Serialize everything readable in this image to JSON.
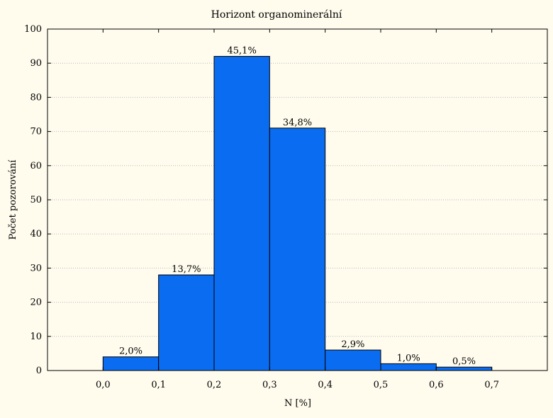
{
  "chart_data": {
    "type": "bar",
    "title": "Horizont organominerální",
    "xlabel": "N [%]",
    "ylabel": "Počet pozorování",
    "bins": [
      {
        "x0": 0.0,
        "x1": 0.1,
        "value": 4,
        "label": "2,0%"
      },
      {
        "x0": 0.1,
        "x1": 0.2,
        "value": 28,
        "label": "13,7%"
      },
      {
        "x0": 0.2,
        "x1": 0.3,
        "value": 92,
        "label": "45,1%"
      },
      {
        "x0": 0.3,
        "x1": 0.4,
        "value": 71,
        "label": "34,8%"
      },
      {
        "x0": 0.4,
        "x1": 0.5,
        "value": 6,
        "label": "2,9%"
      },
      {
        "x0": 0.5,
        "x1": 0.6,
        "value": 2,
        "label": "1,0%"
      },
      {
        "x0": 0.6,
        "x1": 0.7,
        "value": 1,
        "label": "0,5%"
      }
    ],
    "xlim": [
      -0.1,
      0.8
    ],
    "ylim": [
      0,
      100
    ],
    "x_ticks": [
      "0,0",
      "0,1",
      "0,2",
      "0,3",
      "0,4",
      "0,5",
      "0,6",
      "0,7"
    ],
    "y_ticks": [
      "0",
      "10",
      "20",
      "30",
      "40",
      "50",
      "60",
      "70",
      "80",
      "90",
      "100"
    ],
    "grid": true,
    "bar_color": "#0a6cf0",
    "background": "#fffcee"
  }
}
